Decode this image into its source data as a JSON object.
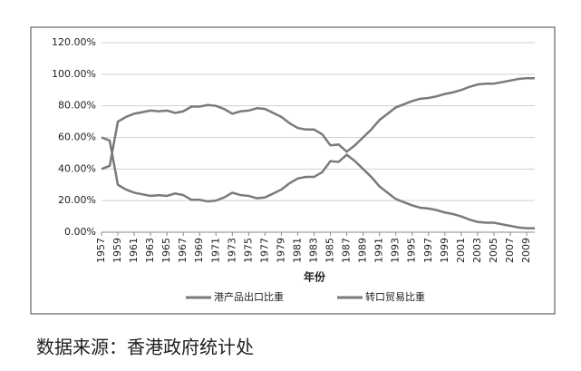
{
  "chart_data": {
    "type": "line",
    "x_label": "年份",
    "source": "数据来源：香港政府统计处",
    "x": [
      1957,
      1958,
      1959,
      1960,
      1961,
      1962,
      1963,
      1964,
      1965,
      1966,
      1967,
      1968,
      1969,
      1970,
      1971,
      1972,
      1973,
      1974,
      1975,
      1976,
      1977,
      1978,
      1979,
      1980,
      1981,
      1982,
      1983,
      1984,
      1985,
      1986,
      1987,
      1988,
      1989,
      1990,
      1991,
      1992,
      1993,
      1994,
      1995,
      1996,
      1997,
      1998,
      1999,
      2000,
      2001,
      2002,
      2003,
      2004,
      2005,
      2006,
      2007,
      2008,
      2009,
      2010
    ],
    "xlim": [
      1957,
      2010
    ],
    "xticks": [
      1957,
      1959,
      1961,
      1963,
      1965,
      1967,
      1969,
      1971,
      1973,
      1975,
      1977,
      1979,
      1981,
      1983,
      1985,
      1987,
      1989,
      1991,
      1993,
      1995,
      1997,
      1999,
      2001,
      2003,
      2005,
      2007,
      2009
    ],
    "ylim": [
      0,
      120
    ],
    "yticks": [
      {
        "value": 0,
        "label": "0.00%"
      },
      {
        "value": 20,
        "label": "20.00%"
      },
      {
        "value": 40,
        "label": "40.00%"
      },
      {
        "value": 60,
        "label": "60.00%"
      },
      {
        "value": 80,
        "label": "80.00%"
      },
      {
        "value": 100,
        "label": "100.00%"
      },
      {
        "value": 120,
        "label": "120.00%"
      }
    ],
    "grid": true,
    "legend": "bottom",
    "series": [
      {
        "name": "港产品出口比重",
        "color": "#7a7a7a",
        "values": [
          60,
          58,
          30,
          27,
          25,
          24,
          23,
          23.5,
          23,
          24.5,
          23.5,
          20.5,
          20.5,
          19.5,
          20,
          22,
          25,
          23.5,
          23,
          21.5,
          22,
          24.5,
          27,
          31,
          34,
          35,
          35,
          38,
          45,
          44.5,
          49,
          45,
          40,
          35,
          29,
          25,
          21,
          19,
          17,
          15.5,
          15,
          14,
          12.5,
          11.5,
          10,
          8,
          6.5,
          6,
          6,
          5,
          4,
          3,
          2.5,
          2.5
        ]
      },
      {
        "name": "转口贸易比重",
        "color": "#7a7a7a",
        "values": [
          40,
          42,
          70,
          73,
          75,
          76,
          77,
          76.5,
          77,
          75.5,
          76.5,
          79.5,
          79.5,
          80.5,
          80,
          78,
          75,
          76.5,
          77,
          78.5,
          78,
          75.5,
          73,
          69,
          66,
          65,
          65,
          62,
          55,
          55.5,
          51,
          55,
          60,
          65,
          71,
          75,
          79,
          81,
          83,
          84.5,
          85,
          86,
          87.5,
          88.5,
          90,
          92,
          93.5,
          94,
          94,
          95,
          96,
          97,
          97.5,
          97.5
        ]
      }
    ]
  }
}
